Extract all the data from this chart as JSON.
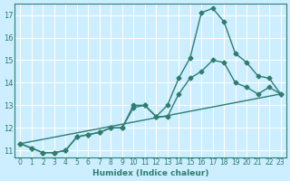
{
  "xlabel": "Humidex (Indice chaleur)",
  "ylabel": "",
  "bg_color": "#cceeff",
  "grid_color": "#ffffff",
  "line_color": "#2e7d6e",
  "xlim": [
    -0.5,
    23.5
  ],
  "ylim": [
    10.7,
    17.5
  ],
  "yticks": [
    11,
    12,
    13,
    14,
    15,
    16,
    17
  ],
  "xticks": [
    0,
    1,
    2,
    3,
    4,
    5,
    6,
    7,
    8,
    9,
    10,
    11,
    12,
    13,
    14,
    15,
    16,
    17,
    18,
    19,
    20,
    21,
    22,
    23
  ],
  "line1_x": [
    0,
    1,
    2,
    3,
    4,
    5,
    6,
    7,
    8,
    9,
    10,
    11,
    12,
    13,
    14,
    15,
    16,
    17,
    18,
    19,
    20,
    21,
    22,
    23
  ],
  "line1_y": [
    11.3,
    11.1,
    10.9,
    10.9,
    11.0,
    11.6,
    11.7,
    11.8,
    12.0,
    12.0,
    12.9,
    13.0,
    12.5,
    13.0,
    14.2,
    15.1,
    17.1,
    17.3,
    16.7,
    15.3,
    14.9,
    14.3,
    14.2,
    13.5
  ],
  "line2_x": [
    0,
    1,
    2,
    3,
    4,
    5,
    6,
    7,
    8,
    9,
    10,
    11,
    12,
    13,
    14,
    15,
    16,
    17,
    18,
    19,
    20,
    21,
    22,
    23
  ],
  "line2_y": [
    11.3,
    11.1,
    10.9,
    10.9,
    11.0,
    11.6,
    11.7,
    11.8,
    12.0,
    12.0,
    13.0,
    13.0,
    12.5,
    12.5,
    13.5,
    14.2,
    14.5,
    15.0,
    14.9,
    14.0,
    13.8,
    13.5,
    13.8,
    13.5
  ],
  "line3_x": [
    0,
    23
  ],
  "line3_y": [
    11.3,
    13.5
  ]
}
